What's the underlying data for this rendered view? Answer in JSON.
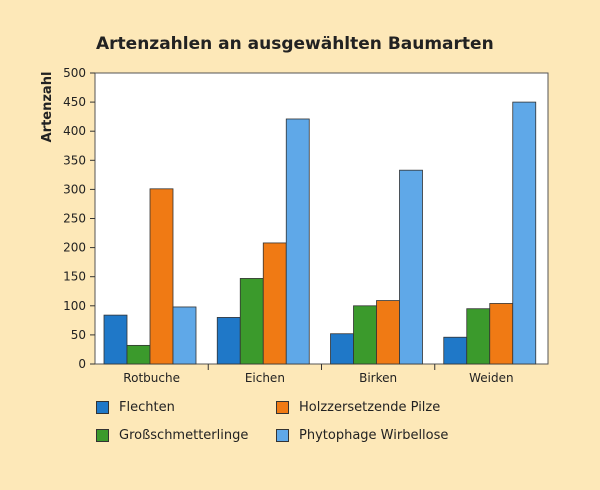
{
  "chart_data": {
    "type": "bar",
    "title": "Artenzahlen an ausgewählten Baumarten",
    "xlabel": "",
    "ylabel": "Artenzahl",
    "ylim": [
      0,
      500
    ],
    "yticks": [
      0,
      50,
      100,
      150,
      200,
      250,
      300,
      350,
      400,
      450,
      500
    ],
    "grid": false,
    "legend_position": "bottom",
    "categories": [
      "Rotbuche",
      "Eichen",
      "Birken",
      "Weiden"
    ],
    "series": [
      {
        "name": "Flechten",
        "color": "#1f78c8",
        "values": [
          84,
          80,
          52,
          46
        ]
      },
      {
        "name": "Großschmetterlinge",
        "color": "#3b9a2c",
        "values": [
          32,
          147,
          100,
          95
        ]
      },
      {
        "name": "Holzzersetzende Pilze",
        "color": "#f07a14",
        "values": [
          301,
          208,
          109,
          104
        ]
      },
      {
        "name": "Phytophage Wirbellose",
        "color": "#5fa8e8",
        "values": [
          98,
          421,
          333,
          450
        ]
      }
    ]
  }
}
